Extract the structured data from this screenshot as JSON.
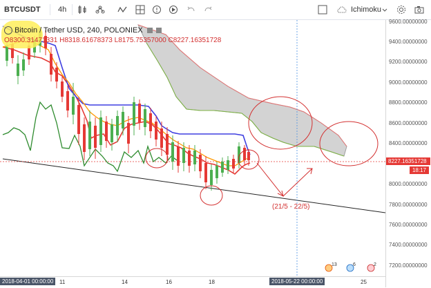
{
  "toolbar": {
    "symbol": "BTCUSDT",
    "interval": "4h",
    "indicator": "Ichimoku"
  },
  "legend": {
    "title": "Bitcoin / Tether USD, 240, POLONIEX",
    "open_label": "O",
    "open": "8300.31471331",
    "high_label": "H",
    "high": "8318.61678373",
    "low_label": "L",
    "low": "8175.75357000",
    "close_label": "C",
    "close": "8227.16351728"
  },
  "price_axis": {
    "ticks": [
      "9600.00000000",
      "9400.00000000",
      "9200.00000000",
      "9000.00000000",
      "8800.00000000",
      "8600.00000000",
      "8400.00000000",
      "8000.00000000",
      "7800.00000000",
      "7600.00000000",
      "7400.00000000",
      "7200.00000000"
    ],
    "current_price": "8227.16351728",
    "countdown": "18:17"
  },
  "time_axis": {
    "start_date": "2018-04-01 00:00:00",
    "labels": [
      "11",
      "14",
      "16",
      "18",
      "25"
    ],
    "cursor_date": "2018-05-22 00:00:00"
  },
  "annotations": {
    "forecast_text": "(21/5 - 22/5)"
  },
  "events": {
    "earnings_count": "13",
    "dividends_count": "6",
    "splits_count": "2"
  },
  "colors": {
    "up": "#4caf50",
    "down": "#e53935",
    "tenkan": "#e53935",
    "kijun": "#3f3fe0",
    "chikou": "#2e8b2e",
    "ma": "#ff9800",
    "cloud": "#d3d3d3",
    "circles": "#d32f2f"
  }
}
